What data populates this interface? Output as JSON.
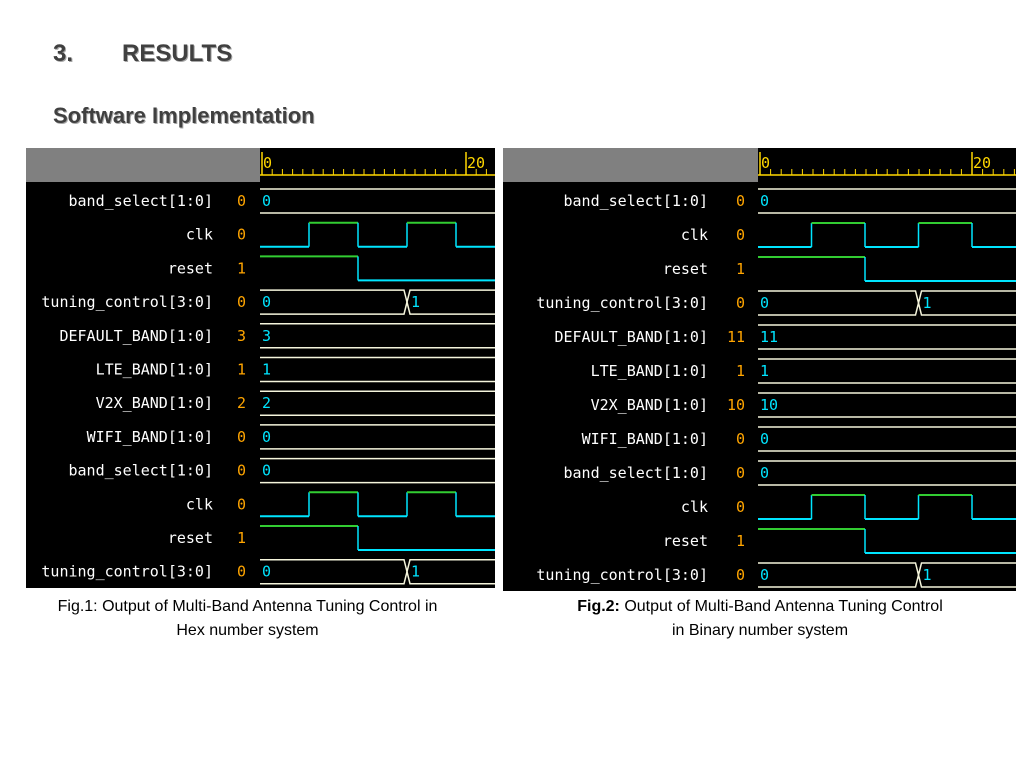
{
  "header": {
    "number": "3.",
    "title": "RESULTS",
    "subtitle": "Software Implementation"
  },
  "colors": {
    "bg": "#000000",
    "header_bg": "#808080",
    "ruler": "#ffd700",
    "name": "#ffffff",
    "value": "#ffa500",
    "clk": "#32cd32",
    "trace": "#00e5ff",
    "bus": "#f5f5dc"
  },
  "figures": [
    {
      "id": "fig1",
      "ruler": {
        "start": "0",
        "end": "20"
      },
      "signals": [
        {
          "name": "band_select[1:0]",
          "value": "0",
          "type": "bus",
          "labels": [
            "0"
          ]
        },
        {
          "name": "clk",
          "value": "0",
          "type": "clk"
        },
        {
          "name": "reset",
          "value": "1",
          "type": "reset"
        },
        {
          "name": "tuning_control[3:0]",
          "value": "0",
          "type": "bus",
          "labels": [
            "0",
            "1"
          ]
        },
        {
          "name": "DEFAULT_BAND[1:0]",
          "value": "3",
          "type": "bus",
          "labels": [
            "3"
          ]
        },
        {
          "name": "LTE_BAND[1:0]",
          "value": "1",
          "type": "bus",
          "labels": [
            "1"
          ]
        },
        {
          "name": "V2X_BAND[1:0]",
          "value": "2",
          "type": "bus",
          "labels": [
            "2"
          ]
        },
        {
          "name": "WIFI_BAND[1:0]",
          "value": "0",
          "type": "bus",
          "labels": [
            "0"
          ]
        },
        {
          "name": "band_select[1:0]",
          "value": "0",
          "type": "bus",
          "labels": [
            "0"
          ]
        },
        {
          "name": "clk",
          "value": "0",
          "type": "clk"
        },
        {
          "name": "reset",
          "value": "1",
          "type": "reset"
        },
        {
          "name": "tuning_control[3:0]",
          "value": "0",
          "type": "bus",
          "labels": [
            "0",
            "1"
          ]
        }
      ],
      "caption": {
        "bold": "",
        "text": "Fig.1: Output of  Multi-Band Antenna Tuning Control in",
        "line2": "Hex number  system"
      }
    },
    {
      "id": "fig2",
      "ruler": {
        "start": "0",
        "end": "20"
      },
      "signals": [
        {
          "name": "band_select[1:0]",
          "value": "0",
          "type": "bus",
          "labels": [
            "0"
          ]
        },
        {
          "name": "clk",
          "value": "0",
          "type": "clk"
        },
        {
          "name": "reset",
          "value": "1",
          "type": "reset"
        },
        {
          "name": "tuning_control[3:0]",
          "value": "0",
          "type": "bus",
          "labels": [
            "0",
            "1"
          ]
        },
        {
          "name": "DEFAULT_BAND[1:0]",
          "value": "11",
          "type": "bus",
          "labels": [
            "11"
          ]
        },
        {
          "name": "LTE_BAND[1:0]",
          "value": "1",
          "type": "bus",
          "labels": [
            "1"
          ]
        },
        {
          "name": "V2X_BAND[1:0]",
          "value": "10",
          "type": "bus",
          "labels": [
            "10"
          ]
        },
        {
          "name": "WIFI_BAND[1:0]",
          "value": "0",
          "type": "bus",
          "labels": [
            "0"
          ]
        },
        {
          "name": "band_select[1:0]",
          "value": "0",
          "type": "bus",
          "labels": [
            "0"
          ]
        },
        {
          "name": "clk",
          "value": "0",
          "type": "clk"
        },
        {
          "name": "reset",
          "value": "1",
          "type": "reset"
        },
        {
          "name": "tuning_control[3:0]",
          "value": "0",
          "type": "bus",
          "labels": [
            "0",
            "1"
          ]
        }
      ],
      "caption": {
        "bold": "Fig.2:",
        "text": " Output of  Multi-Band Antenna Tuning Control",
        "line2": "in Binary number  system"
      }
    }
  ]
}
